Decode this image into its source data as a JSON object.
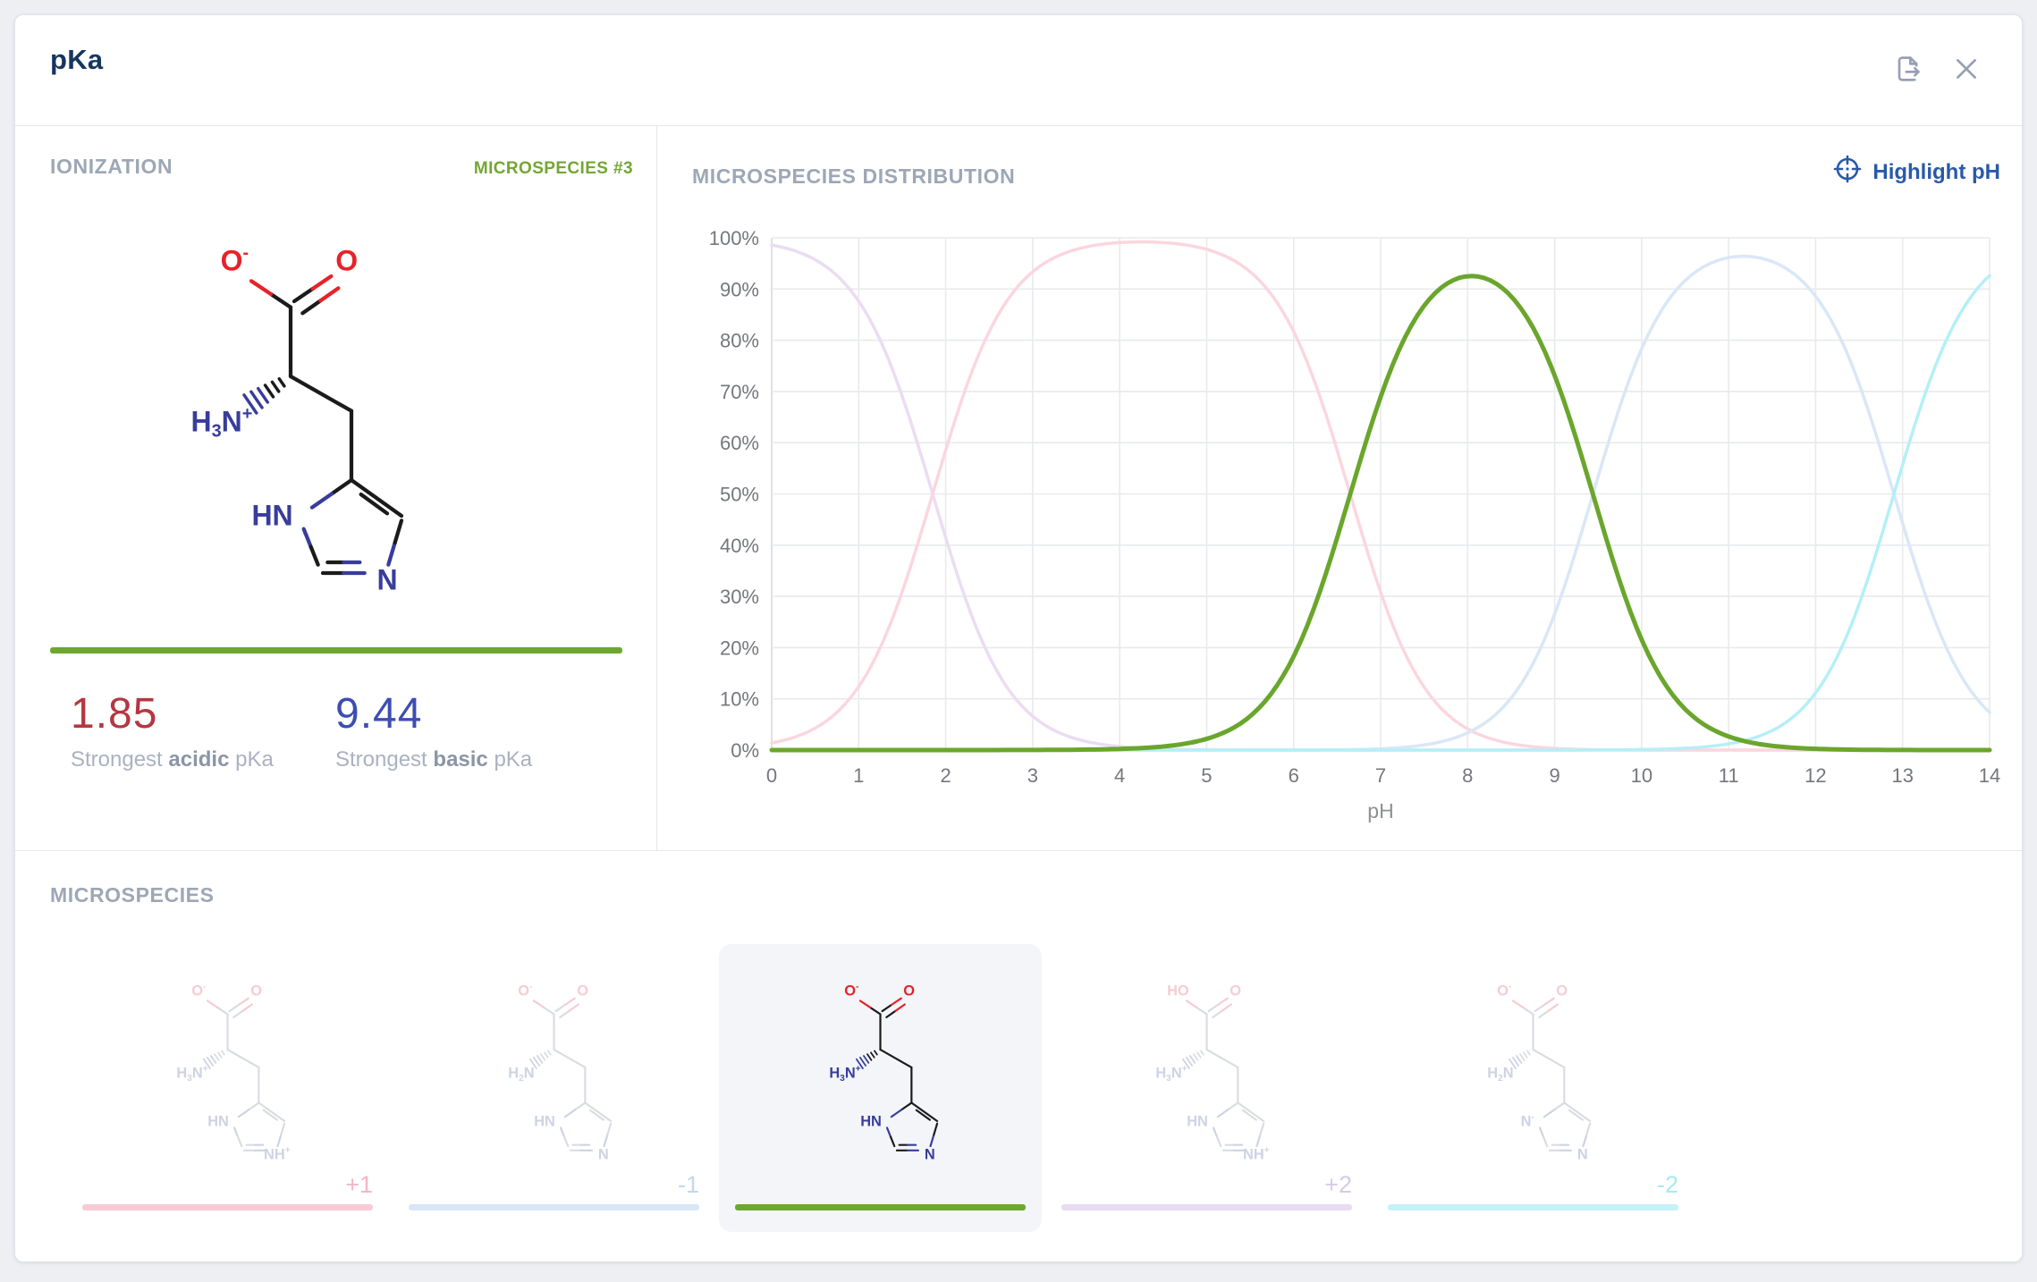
{
  "window": {
    "title": "pKa"
  },
  "header": {
    "icons": [
      {
        "name": "export-icon"
      },
      {
        "name": "close-icon"
      }
    ]
  },
  "ionization": {
    "section_title": "IONIZATION",
    "badge": "MICROSPECIES #3",
    "accent_color": "#6CA830",
    "strongest_acidic": {
      "value": "1.85",
      "label_prefix": "Strongest ",
      "label_emphasis": "acidic",
      "label_suffix": " pKa",
      "value_color": "#B43741"
    },
    "strongest_basic": {
      "value": "9.44",
      "label_prefix": "Strongest ",
      "label_emphasis": "basic",
      "label_suffix": " pKa",
      "value_color": "#3D4DB2"
    },
    "molecule_labels": {
      "o_left": "O^-",
      "o_right": "O",
      "amine": "H_3N^+",
      "ring_left": "HN",
      "ring_right": "N"
    }
  },
  "distribution": {
    "section_title": "MICROSPECIES DISTRIBUTION",
    "highlight_button": {
      "label": "Highlight pH",
      "icon": "target-icon",
      "color": "#2A5AA8"
    }
  },
  "chart_data": {
    "type": "line",
    "title": "MICROSPECIES DISTRIBUTION",
    "xlabel": "pH",
    "ylabel": "",
    "xlim": [
      0,
      14
    ],
    "ylim": [
      0,
      100
    ],
    "x_ticks": [
      0,
      1,
      2,
      3,
      4,
      5,
      6,
      7,
      8,
      9,
      10,
      11,
      12,
      13,
      14
    ],
    "y_ticks": [
      "0%",
      "10%",
      "20%",
      "30%",
      "40%",
      "50%",
      "60%",
      "70%",
      "80%",
      "90%",
      "100%"
    ],
    "grid": true,
    "legend": "none",
    "model": "microspecies fractions computed from successive pKa values (Henderson-Hasselbalch)",
    "pkas": [
      1.85,
      6.65,
      9.44,
      12.9
    ],
    "series": [
      {
        "name": "+2",
        "color": "#EBDCF3",
        "peak": {
          "x": 0,
          "y": 98.6
        }
      },
      {
        "name": "+1",
        "color": "#FBD6DE",
        "peak": {
          "x": 4.25,
          "y": 99.2
        }
      },
      {
        "name": "0 (microspecies #3)",
        "color": "#6AA62C",
        "highlighted": true,
        "peak": {
          "x": 8.05,
          "y": 92.5
        }
      },
      {
        "name": "-1",
        "color": "#D9E7F6",
        "peak": {
          "x": 11.17,
          "y": 96.4
        }
      },
      {
        "name": "-2",
        "color": "#B4EFF7",
        "peak": {
          "x": 14,
          "y": 92.6
        }
      }
    ]
  },
  "microspecies": {
    "section_title": "MICROSPECIES",
    "items": [
      {
        "charge_label": "+1",
        "selected": false,
        "accent": "#F7CBD5",
        "label_color": "#F2B6C4",
        "labels": {
          "o_left": "O^-",
          "o_right": "O",
          "amine": "H_3N^+",
          "ring_left": "HN",
          "ring_right": "NH^+"
        }
      },
      {
        "charge_label": "-1",
        "selected": false,
        "accent": "#D7E7F6",
        "label_color": "#C2D8EC",
        "labels": {
          "o_left": "O^-",
          "o_right": "O",
          "amine": "H_2N",
          "ring_left": "HN",
          "ring_right": "N"
        }
      },
      {
        "charge_label": "",
        "selected": true,
        "accent": "#6CA830",
        "label_color": "#6CA830",
        "labels": {
          "o_left": "O^-",
          "o_right": "O",
          "amine": "H_3N^+",
          "ring_left": "HN",
          "ring_right": "N"
        }
      },
      {
        "charge_label": "+2",
        "selected": false,
        "accent": "#E8DCF1",
        "label_color": "#DAC9E9",
        "labels": {
          "o_left": "HO",
          "o_right": "O",
          "amine": "H_3N^+",
          "ring_left": "HN",
          "ring_right": "NH^+"
        }
      },
      {
        "charge_label": "-2",
        "selected": false,
        "accent": "#C5F2F7",
        "label_color": "#A8E9F0",
        "labels": {
          "o_left": "O^-",
          "o_right": "O",
          "amine": "H_2N",
          "ring_left": "N^-",
          "ring_right": "N"
        }
      }
    ]
  }
}
